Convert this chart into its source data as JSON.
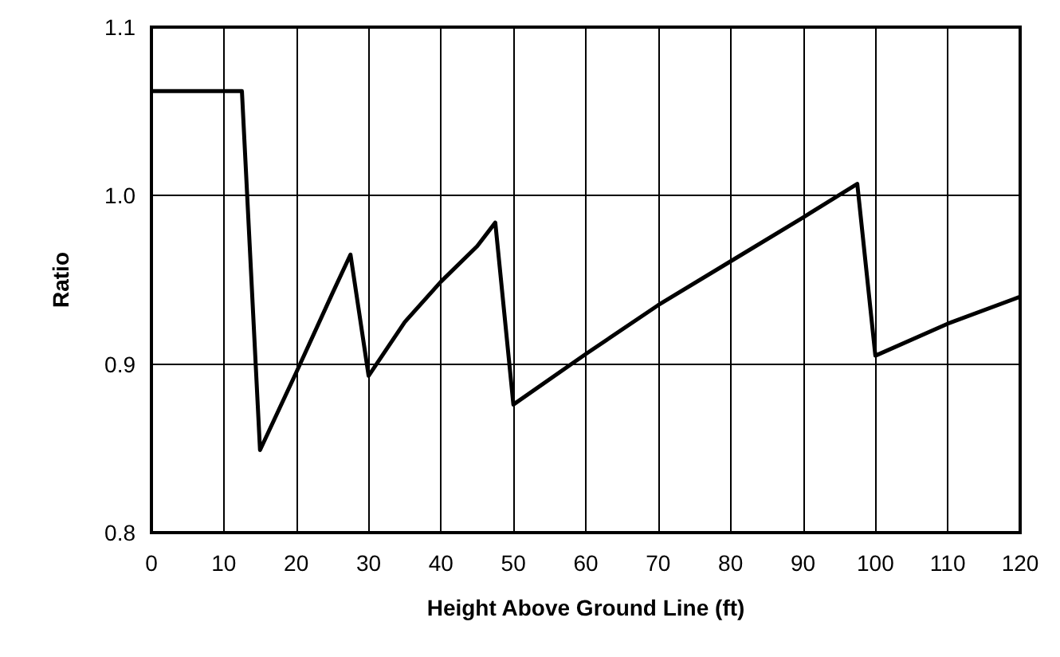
{
  "chart_data": {
    "type": "line",
    "xlabel": "Height Above Ground Line (ft)",
    "ylabel": "Ratio",
    "x": [
      0,
      12.5,
      15,
      20,
      25,
      27.5,
      30,
      35,
      40,
      45,
      47.5,
      50,
      60,
      70,
      80,
      90,
      97.5,
      100,
      110,
      120
    ],
    "series": [
      {
        "color": "#000000",
        "values": [
          1.062,
          1.062,
          0.849,
          0.895,
          0.942,
          0.965,
          0.893,
          0.925,
          0.949,
          0.97,
          0.984,
          0.876,
          0.906,
          0.935,
          0.961,
          0.987,
          1.007,
          0.905,
          0.924,
          0.94
        ]
      }
    ],
    "xlim": [
      0,
      120
    ],
    "xticks": [
      0,
      10,
      20,
      30,
      40,
      50,
      60,
      70,
      80,
      90,
      100,
      110,
      120
    ],
    "ylim": [
      0.8,
      1.1
    ],
    "yticks": [
      {
        "value": 0.8,
        "label": "0.8"
      },
      {
        "value": 0.9,
        "label": "0.9"
      },
      {
        "value": 1.0,
        "label": "1.0"
      },
      {
        "value": 1.1,
        "label": "1.1"
      }
    ],
    "grid": true,
    "marker": "none",
    "line_style": "solid"
  }
}
